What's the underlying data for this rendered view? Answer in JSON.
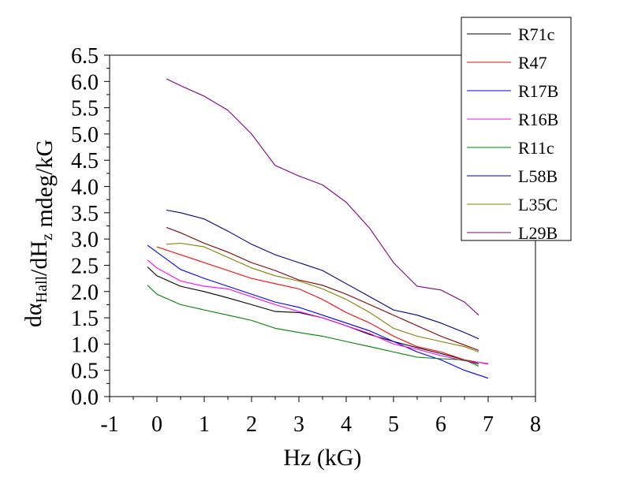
{
  "chart_data": {
    "type": "line",
    "xlabel": "Hz (kG)",
    "ylabel": {
      "parts": [
        {
          "text": "dα",
          "sub": ""
        },
        {
          "text": "",
          "sub": "Hall"
        },
        {
          "text": "/dH",
          "sub": ""
        },
        {
          "text": "",
          "sub": "z"
        },
        {
          "text": " mdeg/kG",
          "sub": ""
        }
      ]
    },
    "xlim": [
      -1,
      8
    ],
    "ylim": [
      0,
      6.5
    ],
    "xticks": [
      "-1",
      "0",
      "1",
      "2",
      "3",
      "4",
      "5",
      "6",
      "7",
      "8"
    ],
    "yticks": [
      "0.0",
      "0.5",
      "1.0",
      "1.5",
      "2.0",
      "2.5",
      "3.0",
      "3.5",
      "4.0",
      "4.5",
      "5.0",
      "5.5",
      "6.0",
      "6.5"
    ],
    "legend_position": "top-right",
    "series": [
      {
        "name": "R71c",
        "color": "#000000",
        "x": [
          -0.2,
          0,
          0.5,
          1,
          1.5,
          2,
          2.5,
          3,
          3.5,
          4,
          4.5,
          5,
          5.5,
          6,
          6.5,
          6.8
        ],
        "y": [
          2.47,
          2.3,
          2.1,
          2.0,
          1.88,
          1.75,
          1.62,
          1.6,
          1.5,
          1.35,
          1.18,
          1.05,
          0.93,
          0.82,
          0.7,
          0.62
        ]
      },
      {
        "name": "R47",
        "color": "#ff0000",
        "x": [
          0,
          0.5,
          1,
          1.5,
          2,
          2.5,
          3,
          3.5,
          4,
          4.5,
          5,
          5.5,
          6,
          6.5,
          7
        ],
        "y": [
          2.85,
          2.7,
          2.55,
          2.4,
          2.25,
          2.15,
          2.05,
          1.85,
          1.6,
          1.4,
          1.15,
          0.95,
          0.85,
          0.7,
          0.62
        ]
      },
      {
        "name": "R17B",
        "color": "#0000ff",
        "x": [
          -0.2,
          0,
          0.5,
          1,
          1.5,
          2,
          2.5,
          3,
          3.5,
          4,
          4.5,
          5,
          5.5,
          6,
          6.5,
          7
        ],
        "y": [
          2.88,
          2.75,
          2.42,
          2.25,
          2.1,
          1.95,
          1.8,
          1.7,
          1.55,
          1.4,
          1.25,
          1.05,
          0.85,
          0.7,
          0.5,
          0.35
        ]
      },
      {
        "name": "R16B",
        "color": "#ff00ff",
        "x": [
          -0.2,
          0,
          0.5,
          1,
          1.5,
          2,
          2.5,
          3,
          3.5,
          4,
          4.5,
          5,
          5.5,
          6,
          6.5,
          7
        ],
        "y": [
          2.6,
          2.45,
          2.2,
          2.1,
          2.05,
          1.9,
          1.75,
          1.62,
          1.5,
          1.35,
          1.2,
          1.0,
          0.9,
          0.78,
          0.68,
          0.63
        ]
      },
      {
        "name": "R11c",
        "color": "#008000",
        "x": [
          -0.2,
          0,
          0.5,
          1,
          1.5,
          2,
          2.5,
          3,
          3.5,
          4,
          4.5,
          5,
          5.5,
          6,
          6.5,
          6.8
        ],
        "y": [
          2.12,
          1.95,
          1.75,
          1.65,
          1.55,
          1.45,
          1.3,
          1.22,
          1.15,
          1.05,
          0.95,
          0.85,
          0.75,
          0.72,
          0.7,
          0.58
        ]
      },
      {
        "name": "L58B",
        "color": "#000080",
        "x": [
          0.2,
          0.5,
          1,
          1.5,
          2,
          2.5,
          3,
          3.5,
          4,
          4.5,
          5,
          5.5,
          6,
          6.5,
          6.8
        ],
        "y": [
          3.55,
          3.5,
          3.38,
          3.15,
          2.9,
          2.7,
          2.55,
          2.4,
          2.15,
          1.9,
          1.65,
          1.55,
          1.4,
          1.22,
          1.1
        ]
      },
      {
        "name": "L35C",
        "color": "#808000",
        "x": [
          0.2,
          0.5,
          1,
          1.5,
          2,
          2.5,
          3,
          3.5,
          4,
          4.5,
          5,
          5.5,
          6,
          6.5,
          6.8
        ],
        "y": [
          2.9,
          2.92,
          2.85,
          2.65,
          2.45,
          2.3,
          2.2,
          2.05,
          1.85,
          1.6,
          1.3,
          1.15,
          1.05,
          0.95,
          0.85
        ]
      },
      {
        "name": "L29B",
        "color": "#800080",
        "x": [
          0.2,
          0.5,
          1,
          1.5,
          2,
          2.5,
          3,
          3.5,
          4,
          4.5,
          5,
          5.5,
          6,
          6.5,
          6.8
        ],
        "y": [
          6.05,
          5.92,
          5.72,
          5.45,
          5.0,
          4.4,
          4.2,
          4.03,
          3.7,
          3.2,
          2.55,
          2.1,
          2.03,
          1.8,
          1.55
        ]
      },
      {
        "name": "",
        "color": "#800000",
        "x": [
          0.2,
          0.5,
          1,
          1.5,
          2,
          2.5,
          3,
          3.5,
          4,
          4.5,
          5,
          5.5,
          6,
          6.5,
          6.8
        ],
        "y": [
          3.22,
          3.12,
          2.92,
          2.75,
          2.55,
          2.4,
          2.22,
          2.12,
          1.95,
          1.75,
          1.55,
          1.35,
          1.15,
          0.98,
          0.88
        ]
      }
    ]
  }
}
